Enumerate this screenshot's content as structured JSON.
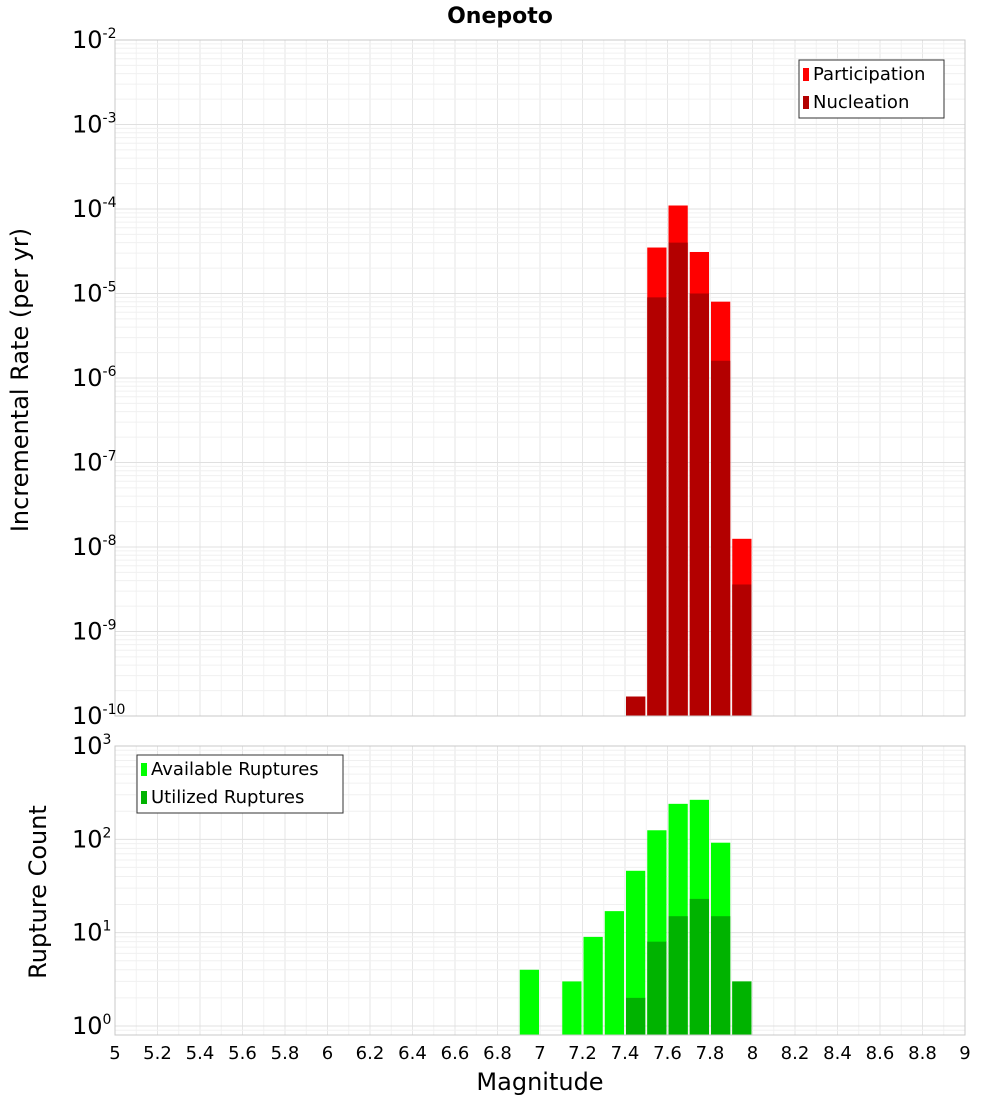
{
  "chart_data": {
    "title": "Onepoto",
    "xlabel": "Magnitude",
    "x_ticks": [
      "5",
      "5.2",
      "5.4",
      "5.6",
      "5.8",
      "6",
      "6.2",
      "6.4",
      "6.6",
      "6.8",
      "7",
      "7.2",
      "7.4",
      "7.6",
      "7.8",
      "8",
      "8.2",
      "8.4",
      "8.6",
      "8.8",
      "9"
    ],
    "xlim": [
      5,
      9
    ],
    "bin_width": 0.1,
    "panels": [
      {
        "type": "bar",
        "ylabel": "Incremental Rate (per yr)",
        "yscale": "log",
        "ylim": [
          1e-10,
          0.01
        ],
        "y_tick_exponents": [
          "-10",
          "-9",
          "-8",
          "-7",
          "-6",
          "-5",
          "-4",
          "-3",
          "-2"
        ],
        "y_tick_base": "10",
        "legend_position": "top-right",
        "series": [
          {
            "name": "Participation",
            "color": "#ff0000",
            "points": [
              {
                "x": 7.45,
                "y": 1.7e-10
              },
              {
                "x": 7.55,
                "y": 3.5e-05
              },
              {
                "x": 7.65,
                "y": 0.00011
              },
              {
                "x": 7.75,
                "y": 3.1e-05
              },
              {
                "x": 7.85,
                "y": 8e-06
              },
              {
                "x": 7.95,
                "y": 1.25e-08
              }
            ]
          },
          {
            "name": "Nucleation",
            "color": "#b30000",
            "points": [
              {
                "x": 7.45,
                "y": 1.7e-10
              },
              {
                "x": 7.55,
                "y": 9e-06
              },
              {
                "x": 7.65,
                "y": 4e-05
              },
              {
                "x": 7.75,
                "y": 1e-05
              },
              {
                "x": 7.85,
                "y": 1.6e-06
              },
              {
                "x": 7.95,
                "y": 3.6e-09
              }
            ]
          }
        ]
      },
      {
        "type": "bar",
        "ylabel": "Rupture Count",
        "yscale": "log",
        "ylim": [
          0.8,
          1000
        ],
        "y_tick_exponents": [
          "0",
          "1",
          "2",
          "3"
        ],
        "y_tick_base": "10",
        "legend_position": "top-left",
        "series": [
          {
            "name": "Available Ruptures",
            "color": "#00ff00",
            "points": [
              {
                "x": 6.95,
                "y": 4
              },
              {
                "x": 7.15,
                "y": 3
              },
              {
                "x": 7.25,
                "y": 9
              },
              {
                "x": 7.35,
                "y": 17
              },
              {
                "x": 7.45,
                "y": 46
              },
              {
                "x": 7.55,
                "y": 125
              },
              {
                "x": 7.65,
                "y": 240
              },
              {
                "x": 7.75,
                "y": 265
              },
              {
                "x": 7.85,
                "y": 92
              },
              {
                "x": 7.95,
                "y": 3
              }
            ]
          },
          {
            "name": "Utilized Ruptures",
            "color": "#00b300",
            "points": [
              {
                "x": 7.45,
                "y": 2
              },
              {
                "x": 7.55,
                "y": 8
              },
              {
                "x": 7.65,
                "y": 15
              },
              {
                "x": 7.75,
                "y": 23
              },
              {
                "x": 7.85,
                "y": 15
              },
              {
                "x": 7.95,
                "y": 3
              }
            ]
          }
        ]
      }
    ]
  }
}
